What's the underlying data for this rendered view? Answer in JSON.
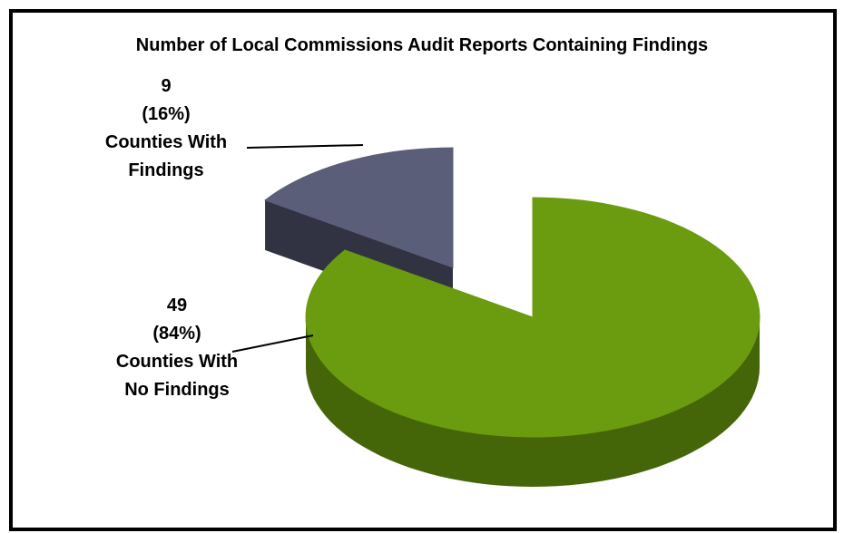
{
  "chart_data": {
    "type": "pie",
    "title": "Number of Local Commissions Audit Reports Containing Findings",
    "categories": [
      "Counties With Findings",
      "Counties With No Findings"
    ],
    "values": [
      9,
      49
    ],
    "percents": [
      16,
      84
    ],
    "percent_labels": [
      "(16%)",
      "(84%)"
    ],
    "colors": [
      "#5a5e78",
      "#6b9b0f"
    ],
    "explode": [
      true,
      false
    ]
  }
}
